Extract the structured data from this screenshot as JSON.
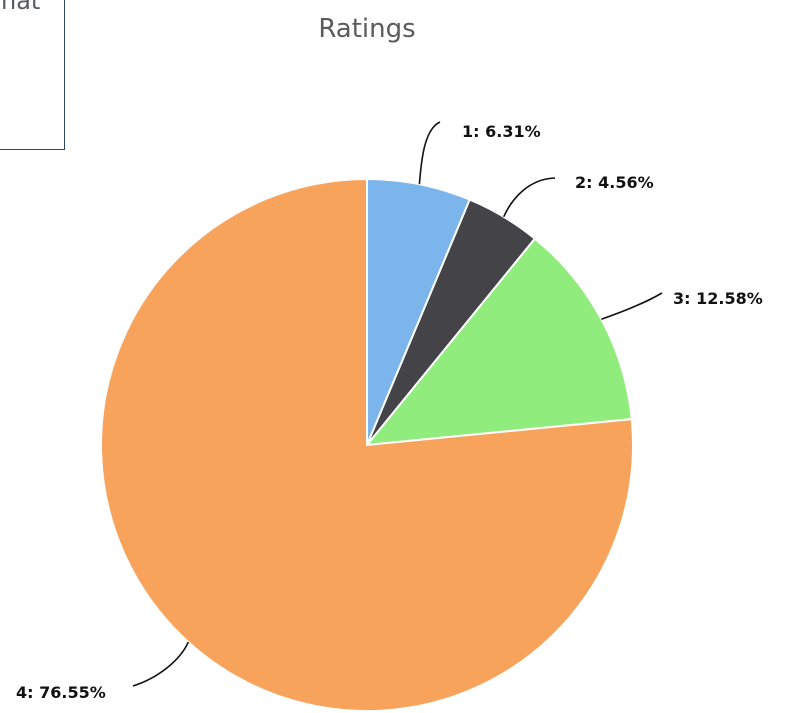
{
  "partial_panel": {
    "visible_text": "hat"
  },
  "chart_data": {
    "type": "pie",
    "title": "Ratings",
    "categories": [
      "1",
      "2",
      "3",
      "4"
    ],
    "values": [
      6.31,
      4.56,
      12.58,
      76.55
    ],
    "labels": [
      "1: 6.31%",
      "2: 4.56%",
      "3: 12.58%",
      "4: 76.55%"
    ],
    "colors": [
      "#7cb5ec",
      "#434348",
      "#90ed7d",
      "#f7a35c"
    ],
    "unit": "%"
  }
}
